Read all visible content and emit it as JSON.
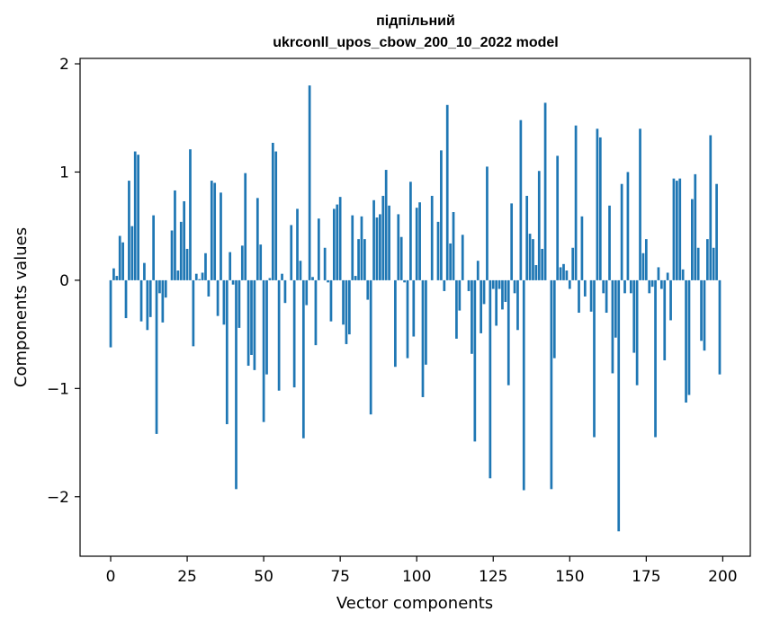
{
  "chart_data": {
    "type": "bar",
    "title_line1": "підпільний",
    "title_line2": "ukrconll_upos_cbow_200_10_2022 model",
    "xlabel": "Vector components",
    "ylabel": "Components values",
    "xlim": [
      -10,
      209
    ],
    "ylim": [
      -2.55,
      2.05
    ],
    "xticks": [
      0,
      25,
      50,
      75,
      100,
      125,
      150,
      175,
      200
    ],
    "xtick_labels": [
      "0",
      "25",
      "50",
      "75",
      "100",
      "125",
      "150",
      "175",
      "200"
    ],
    "yticks": [
      -2,
      -1,
      0,
      1,
      2
    ],
    "ytick_labels": [
      "−2",
      "−1",
      "0",
      "1",
      "2"
    ],
    "bar_color": "#1f77b4",
    "x": [
      0,
      1,
      2,
      3,
      4,
      5,
      6,
      7,
      8,
      9,
      10,
      11,
      12,
      13,
      14,
      15,
      16,
      17,
      18,
      19,
      20,
      21,
      22,
      23,
      24,
      25,
      26,
      27,
      28,
      29,
      30,
      31,
      32,
      33,
      34,
      35,
      36,
      37,
      38,
      39,
      40,
      41,
      42,
      43,
      44,
      45,
      46,
      47,
      48,
      49,
      50,
      51,
      52,
      53,
      54,
      55,
      56,
      57,
      58,
      59,
      60,
      61,
      62,
      63,
      64,
      65,
      66,
      67,
      68,
      69,
      70,
      71,
      72,
      73,
      74,
      75,
      76,
      77,
      78,
      79,
      80,
      81,
      82,
      83,
      84,
      85,
      86,
      87,
      88,
      89,
      90,
      91,
      92,
      93,
      94,
      95,
      96,
      97,
      98,
      99,
      100,
      101,
      102,
      103,
      104,
      105,
      106,
      107,
      108,
      109,
      110,
      111,
      112,
      113,
      114,
      115,
      116,
      117,
      118,
      119,
      120,
      121,
      122,
      123,
      124,
      125,
      126,
      127,
      128,
      129,
      130,
      131,
      132,
      133,
      134,
      135,
      136,
      137,
      138,
      139,
      140,
      141,
      142,
      143,
      144,
      145,
      146,
      147,
      148,
      149,
      150,
      151,
      152,
      153,
      154,
      155,
      156,
      157,
      158,
      159,
      160,
      161,
      162,
      163,
      164,
      165,
      166,
      167,
      168,
      169,
      170,
      171,
      172,
      173,
      174,
      175,
      176,
      177,
      178,
      179,
      180,
      181,
      182,
      183,
      184,
      185,
      186,
      187,
      188,
      189,
      190,
      191,
      192,
      193,
      194,
      195,
      196,
      197,
      198,
      199
    ],
    "values": [
      -0.62,
      0.11,
      0.04,
      0.41,
      0.35,
      -0.35,
      0.92,
      0.5,
      1.19,
      1.16,
      -0.38,
      0.16,
      -0.46,
      -0.34,
      0.6,
      -1.42,
      -0.12,
      -0.39,
      -0.16,
      0.0,
      0.46,
      0.83,
      0.09,
      0.54,
      0.73,
      0.29,
      1.21,
      -0.61,
      0.06,
      0.01,
      0.07,
      0.25,
      -0.15,
      0.92,
      0.9,
      -0.33,
      0.81,
      -0.41,
      -1.33,
      0.26,
      -0.04,
      -1.93,
      -0.44,
      0.32,
      0.99,
      -0.79,
      -0.69,
      -0.83,
      0.76,
      0.33,
      -1.31,
      -0.87,
      0.02,
      1.27,
      1.19,
      -1.02,
      0.06,
      -0.21,
      0.0,
      0.51,
      -0.99,
      0.66,
      0.18,
      -1.46,
      -0.23,
      1.8,
      0.03,
      -0.6,
      0.57,
      0.0,
      0.3,
      -0.02,
      -0.38,
      0.66,
      0.7,
      0.77,
      -0.41,
      -0.59,
      -0.5,
      0.6,
      0.04,
      0.38,
      0.59,
      0.38,
      -0.18,
      -1.24,
      0.74,
      0.58,
      0.61,
      0.78,
      1.02,
      0.69,
      0.0,
      -0.8,
      0.61,
      0.4,
      -0.02,
      -0.72,
      0.91,
      -0.52,
      0.67,
      0.72,
      -1.08,
      -0.78,
      0.0,
      0.78,
      0.0,
      0.54,
      1.2,
      -0.1,
      1.62,
      0.34,
      0.63,
      -0.54,
      -0.28,
      0.42,
      0.0,
      -0.1,
      -0.68,
      -1.49,
      0.18,
      -0.49,
      -0.22,
      1.05,
      -1.83,
      -0.08,
      -0.42,
      -0.08,
      -0.27,
      -0.2,
      -0.97,
      0.71,
      -0.12,
      -0.46,
      1.48,
      -1.94,
      0.78,
      0.43,
      0.38,
      0.14,
      1.01,
      0.29,
      1.64,
      0.0,
      -1.93,
      -0.72,
      1.15,
      0.12,
      0.15,
      0.09,
      -0.08,
      0.3,
      1.43,
      -0.3,
      0.59,
      -0.15,
      0.0,
      -0.29,
      -1.45,
      1.4,
      1.32,
      -0.12,
      -0.3,
      0.69,
      -0.86,
      -0.53,
      -2.32,
      0.89,
      -0.12,
      1.0,
      -0.12,
      -0.67,
      -0.97,
      1.4,
      0.25,
      0.38,
      -0.12,
      -0.06,
      -1.45,
      0.12,
      -0.08,
      -0.74,
      0.07,
      -0.37,
      0.94,
      0.92,
      0.94,
      0.1,
      -1.13,
      -1.06,
      0.75,
      0.98,
      0.3,
      -0.56,
      -0.65,
      0.38,
      1.34,
      0.3,
      0.89,
      -0.87
    ]
  }
}
